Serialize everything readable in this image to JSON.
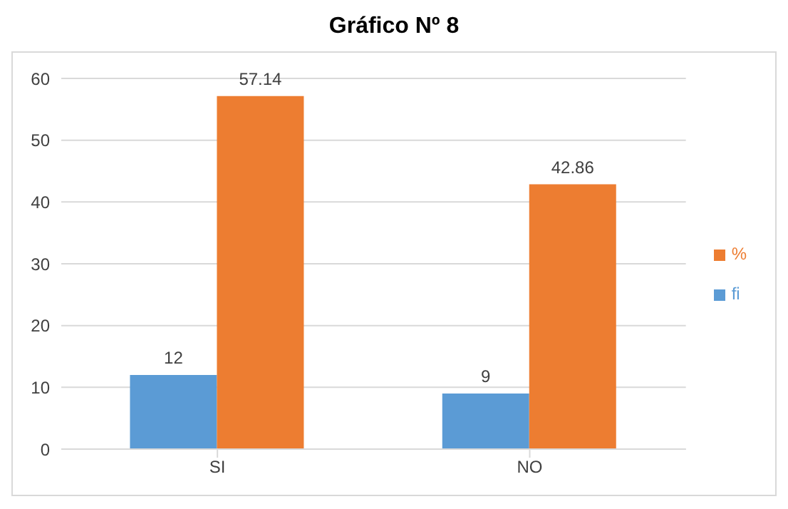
{
  "chart_data": {
    "type": "bar",
    "title": "Gráfico Nº 8",
    "categories": [
      "SI",
      "NO"
    ],
    "series": [
      {
        "name": "fi",
        "color": "#5b9bd5",
        "values": [
          12,
          9
        ]
      },
      {
        "name": "%",
        "color": "#ed7d31",
        "values": [
          57.14,
          42.86
        ]
      }
    ],
    "ylim": [
      0,
      60
    ],
    "yticks": [
      0,
      10,
      20,
      30,
      40,
      50,
      60
    ],
    "grid": "y",
    "legend": "right",
    "data_labels": true
  }
}
